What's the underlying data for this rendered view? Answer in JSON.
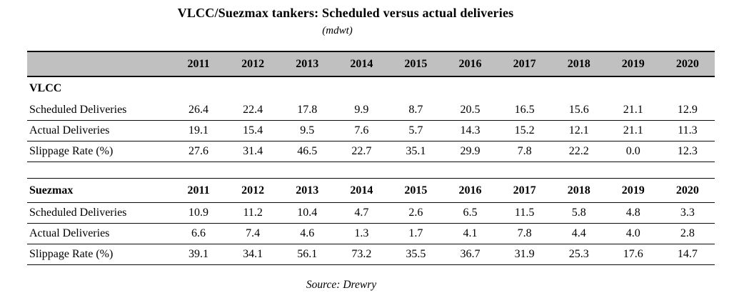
{
  "page": {
    "title": "VLCC/Suezmax tankers: Scheduled versus actual deliveries",
    "subtitle": "(mdwt)",
    "source": "Source: Drewry"
  },
  "colors": {
    "header_band": "#c0c0c0",
    "rule_line": "#0a0a0a",
    "text": "#000000",
    "background": "#ffffff"
  },
  "chart_data": {
    "type": "table",
    "title": "VLCC/Suezmax tankers: Scheduled versus actual deliveries",
    "unit": "mdwt",
    "years": [
      "2011",
      "2012",
      "2013",
      "2014",
      "2015",
      "2016",
      "2017",
      "2018",
      "2019",
      "2020"
    ],
    "sections": [
      {
        "name": "VLCC",
        "years_repeated": false,
        "rows": [
          {
            "label": "Scheduled Deliveries",
            "values": [
              "26.4",
              "22.4",
              "17.8",
              "9.9",
              "8.7",
              "20.5",
              "16.5",
              "15.6",
              "21.1",
              "12.9"
            ]
          },
          {
            "label": "Actual Deliveries",
            "values": [
              "19.1",
              "15.4",
              "9.5",
              "7.6",
              "5.7",
              "14.3",
              "15.2",
              "12.1",
              "21.1",
              "11.3"
            ]
          },
          {
            "label": "Slippage Rate (%)",
            "values": [
              "27.6",
              "31.4",
              "46.5",
              "22.7",
              "35.1",
              "29.9",
              "7.8",
              "22.2",
              "0.0",
              "12.3"
            ]
          }
        ]
      },
      {
        "name": "Suezmax",
        "years_repeated": true,
        "rows": [
          {
            "label": "Scheduled Deliveries",
            "values": [
              "10.9",
              "11.2",
              "10.4",
              "4.7",
              "2.6",
              "6.5",
              "11.5",
              "5.8",
              "4.8",
              "3.3"
            ]
          },
          {
            "label": "Actual Deliveries",
            "values": [
              "6.6",
              "7.4",
              "4.6",
              "1.3",
              "1.7",
              "4.1",
              "7.8",
              "4.4",
              "4.0",
              "2.8"
            ]
          },
          {
            "label": "Slippage Rate (%)",
            "values": [
              "39.1",
              "34.1",
              "56.1",
              "73.2",
              "35.5",
              "36.7",
              "31.9",
              "25.3",
              "17.6",
              "14.7"
            ]
          }
        ]
      }
    ],
    "source": "Source: Drewry"
  }
}
